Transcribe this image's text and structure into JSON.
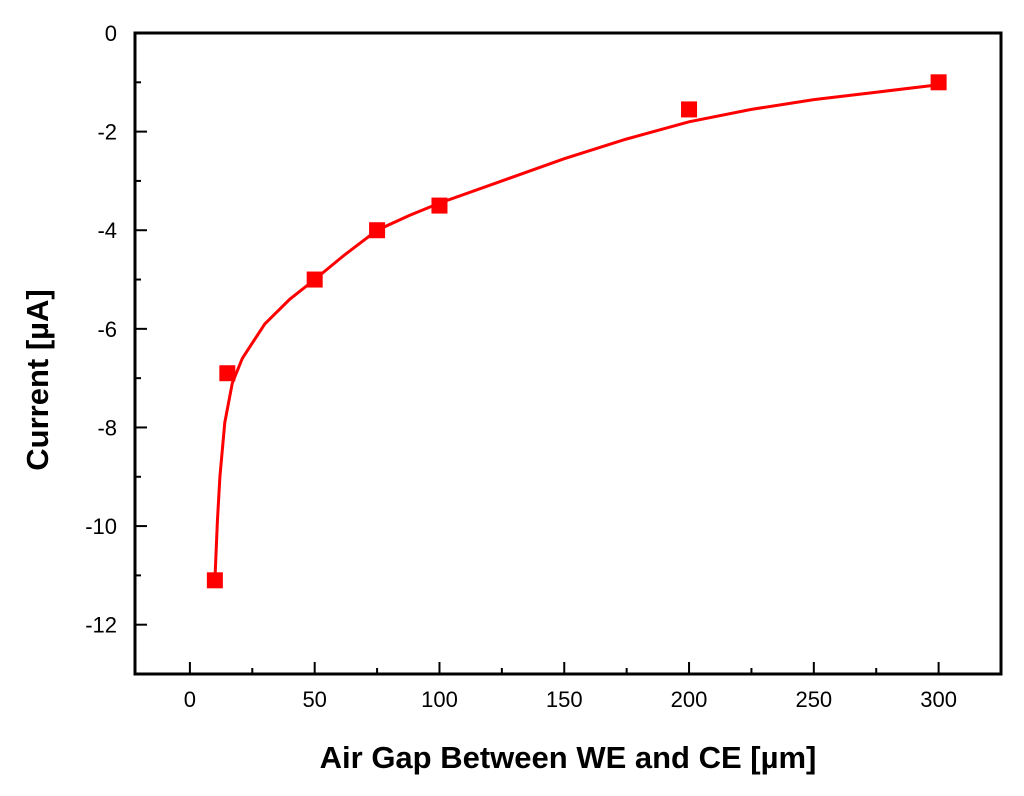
{
  "chart_data": {
    "type": "scatter",
    "title": "",
    "xlabel": "Air Gap Between WE and CE [µm]",
    "ylabel": "Current [µA]",
    "xlim": [
      -22,
      325
    ],
    "ylim": [
      -13,
      0
    ],
    "x_ticks": [
      0,
      50,
      100,
      150,
      200,
      250,
      300
    ],
    "x_tick_labels": [
      "0",
      "50",
      "100",
      "150",
      "200",
      "250",
      "300"
    ],
    "y_ticks": [
      0,
      -2,
      -4,
      -6,
      -8,
      -10,
      -12
    ],
    "y_tick_labels": [
      "0",
      "-2",
      "-4",
      "-6",
      "-8",
      "-10",
      "-12"
    ],
    "grid": false,
    "series": [
      {
        "color": "#ff0000",
        "marker": "square",
        "points": [
          {
            "x": 10,
            "y": -11.1
          },
          {
            "x": 15,
            "y": -6.9
          },
          {
            "x": 50,
            "y": -5.0
          },
          {
            "x": 75,
            "y": -4.0
          },
          {
            "x": 100,
            "y": -3.5
          },
          {
            "x": 200,
            "y": -1.55
          },
          {
            "x": 300,
            "y": -1.0
          }
        ],
        "fit_curve": [
          {
            "x": 10,
            "y": -11.1
          },
          {
            "x": 11,
            "y": -9.9
          },
          {
            "x": 12,
            "y": -9.0
          },
          {
            "x": 14,
            "y": -7.9
          },
          {
            "x": 17,
            "y": -7.1
          },
          {
            "x": 21,
            "y": -6.6
          },
          {
            "x": 30,
            "y": -5.9
          },
          {
            "x": 40,
            "y": -5.4
          },
          {
            "x": 50,
            "y": -5.0
          },
          {
            "x": 62,
            "y": -4.5
          },
          {
            "x": 75,
            "y": -4.0
          },
          {
            "x": 88,
            "y": -3.7
          },
          {
            "x": 100,
            "y": -3.45
          },
          {
            "x": 125,
            "y": -3.0
          },
          {
            "x": 150,
            "y": -2.55
          },
          {
            "x": 175,
            "y": -2.15
          },
          {
            "x": 200,
            "y": -1.8
          },
          {
            "x": 225,
            "y": -1.55
          },
          {
            "x": 250,
            "y": -1.35
          },
          {
            "x": 275,
            "y": -1.2
          },
          {
            "x": 300,
            "y": -1.05
          }
        ]
      }
    ]
  }
}
